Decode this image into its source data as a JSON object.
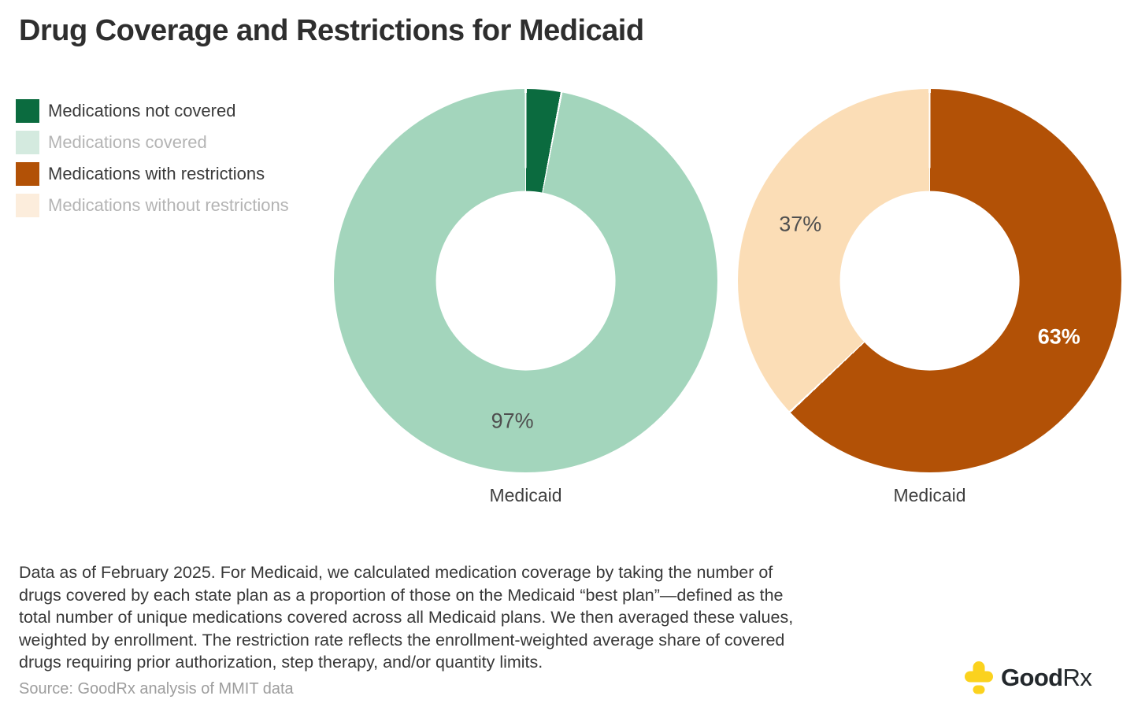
{
  "title": "Drug Coverage and Restrictions for Medicaid",
  "legend": [
    {
      "label": "Medications not covered",
      "swatch_color": "#0B6B3F",
      "muted": false
    },
    {
      "label": "Medications covered",
      "swatch_color": "#D4EADF",
      "muted": true
    },
    {
      "label": "Medications with restrictions",
      "swatch_color": "#B25106",
      "muted": false
    },
    {
      "label": "Medications without restrictions",
      "swatch_color": "#FCEDDC",
      "muted": true
    }
  ],
  "chart_data": [
    {
      "type": "pie",
      "subtype": "donut",
      "title": "Medicaid",
      "start_angle_deg": 0,
      "direction": "clockwise",
      "inner_radius_ratio": 0.47,
      "slices": [
        {
          "label": "Medications not covered",
          "value": 3,
          "color": "#0B6B3F",
          "data_label": null
        },
        {
          "label": "Medications covered",
          "value": 97,
          "color": "#A3D5BC",
          "data_label": "97%",
          "data_label_color": "#4F4F4F",
          "data_label_bold": false
        }
      ]
    },
    {
      "type": "pie",
      "subtype": "donut",
      "title": "Medicaid",
      "start_angle_deg": 0,
      "direction": "clockwise",
      "inner_radius_ratio": 0.47,
      "slices": [
        {
          "label": "Medications with restrictions",
          "value": 63,
          "color": "#B25106",
          "data_label": "63%",
          "data_label_color": "#FFFFFF",
          "data_label_bold": true
        },
        {
          "label": "Medications without restrictions",
          "value": 37,
          "color": "#FBDDB6",
          "data_label": "37%",
          "data_label_color": "#4F4F4F",
          "data_label_bold": false
        }
      ]
    }
  ],
  "footnote_lines": [
    "Data as of February 2025. For Medicaid, we calculated medication coverage by taking the number of",
    "drugs covered by each state plan as a proportion of those on the Medicaid “best plan”—defined as the",
    "total number of unique medications covered across all Medicaid plans. We then averaged these values,",
    "weighted by enrollment. The restriction rate reflects the enrollment-weighted average share of covered",
    "drugs requiring prior authorization, step therapy, and/or quantity limits."
  ],
  "source": "Source: GoodRx analysis of MMIT data",
  "logo": {
    "bold": "Good",
    "light": "Rx",
    "cross_color": "#FBD21E"
  }
}
